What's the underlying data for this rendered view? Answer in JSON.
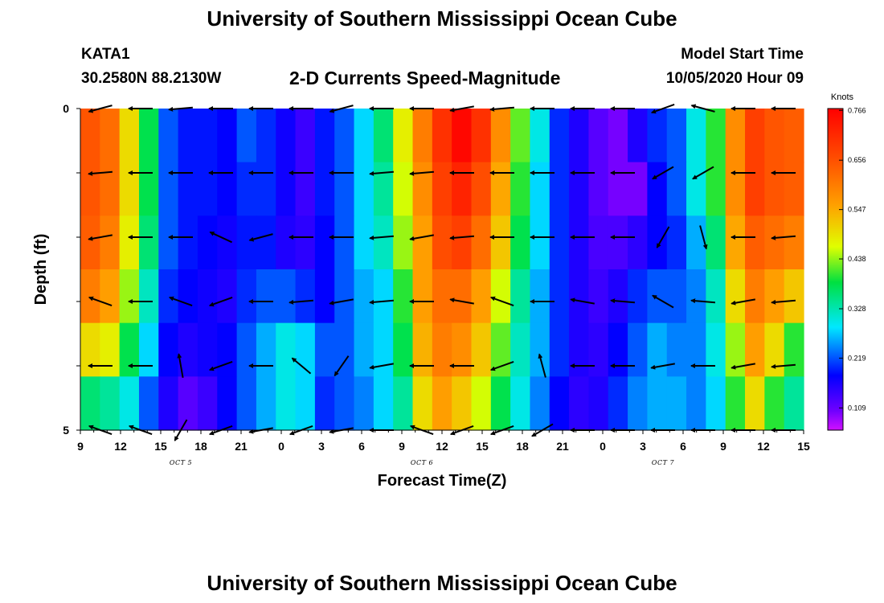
{
  "header": {
    "title": "University of Southern Mississippi Ocean Cube",
    "station": "KATA1",
    "location": "30.2580N 88.2130W",
    "subtitle": "2-D Currents Speed-Magnitude",
    "model_start_label": "Model Start Time",
    "model_start_value": "10/05/2020 Hour 09"
  },
  "footer": {
    "title": "University of Southern Mississippi Ocean Cube"
  },
  "chart_data": {
    "type": "heatmap",
    "xlabel": "Forecast Time(Z)",
    "ylabel": "Depth (ft)",
    "x_tick_labels": [
      "9",
      "12",
      "15",
      "18",
      "21",
      "0",
      "3",
      "6",
      "9",
      "12",
      "15",
      "18",
      "21",
      "0",
      "3",
      "6",
      "9",
      "12",
      "15"
    ],
    "date_labels": [
      {
        "label": "OCT 5",
        "x_index": 2.5
      },
      {
        "label": "OCT 6",
        "x_index": 8.5
      },
      {
        "label": "OCT 7",
        "x_index": 14.5
      }
    ],
    "y_tick_labels": [
      {
        "label": "0",
        "value": 0
      },
      {
        "label": "5",
        "value": 5
      }
    ],
    "ylim": [
      0,
      5
    ],
    "x_hours": [
      0,
      54
    ],
    "colorbar": {
      "unit": "Knots",
      "ticks": [
        0.766,
        0.656,
        0.547,
        0.438,
        0.328,
        0.219,
        0.109
      ],
      "range": [
        0.06,
        0.77
      ]
    },
    "profiles": [
      [
        0.65,
        0.62,
        0.5,
        0.38,
        0.22,
        0.19,
        0.19,
        0.18,
        0.22,
        0.2,
        0.17,
        0.14,
        0.19,
        0.22,
        0.28,
        0.36,
        0.48,
        0.6,
        0.7,
        0.76,
        0.7,
        0.58,
        0.42,
        0.3,
        0.2,
        0.16,
        0.12,
        0.1,
        0.16,
        0.2,
        0.22,
        0.3,
        0.4,
        0.58,
        0.68,
        0.65,
        0.64
      ],
      [
        0.65,
        0.62,
        0.5,
        0.38,
        0.22,
        0.19,
        0.19,
        0.18,
        0.2,
        0.2,
        0.17,
        0.14,
        0.19,
        0.22,
        0.28,
        0.34,
        0.46,
        0.58,
        0.68,
        0.72,
        0.66,
        0.55,
        0.4,
        0.28,
        0.2,
        0.16,
        0.12,
        0.1,
        0.1,
        0.18,
        0.22,
        0.3,
        0.4,
        0.58,
        0.68,
        0.65,
        0.64
      ],
      [
        0.64,
        0.6,
        0.48,
        0.36,
        0.22,
        0.19,
        0.18,
        0.17,
        0.19,
        0.19,
        0.16,
        0.15,
        0.18,
        0.22,
        0.28,
        0.32,
        0.44,
        0.56,
        0.66,
        0.68,
        0.62,
        0.52,
        0.38,
        0.28,
        0.2,
        0.16,
        0.13,
        0.13,
        0.15,
        0.18,
        0.2,
        0.26,
        0.36,
        0.55,
        0.64,
        0.62,
        0.6
      ],
      [
        0.6,
        0.56,
        0.44,
        0.32,
        0.2,
        0.18,
        0.17,
        0.16,
        0.2,
        0.22,
        0.22,
        0.2,
        0.18,
        0.22,
        0.26,
        0.28,
        0.4,
        0.56,
        0.62,
        0.62,
        0.56,
        0.46,
        0.34,
        0.26,
        0.2,
        0.16,
        0.14,
        0.16,
        0.2,
        0.22,
        0.22,
        0.24,
        0.32,
        0.5,
        0.6,
        0.56,
        0.52
      ],
      [
        0.5,
        0.48,
        0.38,
        0.28,
        0.18,
        0.16,
        0.17,
        0.18,
        0.22,
        0.26,
        0.3,
        0.28,
        0.22,
        0.22,
        0.26,
        0.28,
        0.38,
        0.54,
        0.6,
        0.58,
        0.52,
        0.42,
        0.32,
        0.26,
        0.2,
        0.16,
        0.15,
        0.18,
        0.22,
        0.26,
        0.24,
        0.24,
        0.3,
        0.44,
        0.56,
        0.5,
        0.4
      ],
      [
        0.36,
        0.34,
        0.3,
        0.22,
        0.16,
        0.12,
        0.14,
        0.18,
        0.22,
        0.26,
        0.3,
        0.28,
        0.2,
        0.22,
        0.24,
        0.28,
        0.34,
        0.5,
        0.56,
        0.52,
        0.46,
        0.38,
        0.3,
        0.24,
        0.18,
        0.15,
        0.16,
        0.2,
        0.24,
        0.26,
        0.26,
        0.24,
        0.28,
        0.4,
        0.5,
        0.4,
        0.34
      ]
    ],
    "arrow_grid": {
      "x_hours": [
        1.5,
        4.5,
        7.5,
        10.5,
        13.5,
        16.5,
        19.5,
        22.5,
        25.5,
        28.5,
        31.5,
        34.5,
        37.5,
        40.5,
        43.5,
        46.5,
        49.5,
        52.5
      ],
      "depths": [
        0,
        1,
        2,
        3,
        4,
        5
      ],
      "angles_deg": [
        [
          195,
          180,
          185,
          180,
          180,
          180,
          195,
          180,
          180,
          190,
          185,
          180,
          180,
          180,
          200,
          165,
          180,
          180
        ],
        [
          185,
          180,
          180,
          180,
          180,
          180,
          180,
          185,
          185,
          180,
          180,
          180,
          180,
          180,
          210,
          210,
          180,
          180
        ],
        [
          190,
          180,
          180,
          155,
          195,
          180,
          180,
          185,
          190,
          185,
          180,
          180,
          180,
          180,
          240,
          285,
          180,
          185
        ],
        [
          160,
          180,
          160,
          200,
          180,
          185,
          190,
          185,
          180,
          170,
          160,
          180,
          170,
          175,
          150,
          175,
          190,
          185
        ],
        [
          180,
          180,
          100,
          200,
          180,
          140,
          235,
          190,
          180,
          180,
          200,
          105,
          180,
          180,
          190,
          180,
          190,
          185
        ],
        [
          160,
          160,
          240,
          200,
          190,
          200,
          190,
          180,
          160,
          200,
          200,
          210,
          180,
          180,
          180,
          180,
          180,
          180
        ]
      ]
    }
  }
}
